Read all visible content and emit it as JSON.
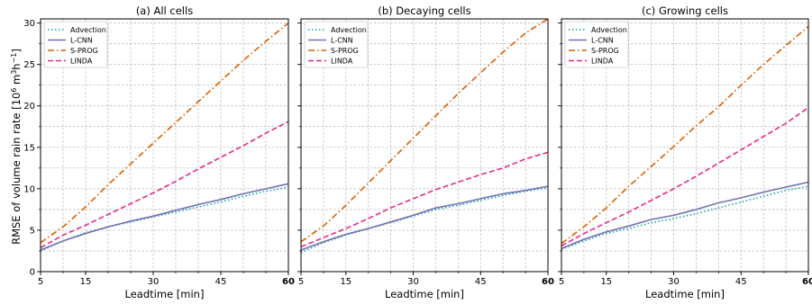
{
  "ylabel_main": "RMSE of volume rain rate [10",
  "ylabel_exp": "6",
  "ylabel_unit1": " m",
  "ylabel_exp2": "3",
  "ylabel_unit2": "h",
  "ylabel_exp3": "−1",
  "ylabel_end": "]",
  "chart_data": [
    {
      "type": "line",
      "title": "(a) All cells",
      "xlabel": "Leadtime [min]",
      "ylabel": "RMSE of volume rain rate [10^6 m^3 h^-1]",
      "xlim": [
        5,
        60
      ],
      "ylim": [
        0,
        30.5
      ],
      "xticks": [
        5,
        15,
        30,
        45,
        60
      ],
      "xtick_labels": [
        "5",
        "15",
        "30",
        "45",
        "60"
      ],
      "yticks": [
        0,
        5,
        10,
        15,
        20,
        25,
        30
      ],
      "ytick_labels": [
        "0",
        "5",
        "10",
        "15",
        "20",
        "25",
        "30"
      ],
      "grid": true,
      "legend": "top-left",
      "x": [
        5,
        10,
        15,
        20,
        25,
        30,
        35,
        40,
        45,
        50,
        55,
        60
      ],
      "series": [
        {
          "name": "Advection",
          "color": "#17a2a8",
          "style": "dotted",
          "values": [
            2.5,
            3.7,
            4.7,
            5.4,
            6.0,
            6.6,
            7.2,
            7.8,
            8.4,
            9.1,
            9.7,
            10.2
          ]
        },
        {
          "name": "L-CNN",
          "color": "#7570b3",
          "style": "solid",
          "values": [
            2.6,
            3.7,
            4.6,
            5.4,
            6.1,
            6.7,
            7.4,
            8.1,
            8.7,
            9.4,
            10.0,
            10.6
          ]
        },
        {
          "name": "S-PROG",
          "color": "#d95f02",
          "style": "dashdot",
          "values": [
            3.5,
            5.4,
            7.8,
            10.5,
            13.0,
            15.5,
            18.0,
            20.5,
            23.0,
            25.5,
            27.8,
            30.0
          ]
        },
        {
          "name": "LINDA",
          "color": "#e7298a",
          "style": "dashed",
          "values": [
            2.9,
            4.4,
            5.6,
            6.9,
            8.2,
            9.5,
            10.9,
            12.4,
            13.8,
            15.2,
            16.7,
            18.1
          ]
        }
      ]
    },
    {
      "type": "line",
      "title": "(b) Decaying cells",
      "xlabel": "Leadtime [min]",
      "xlim": [
        5,
        60
      ],
      "ylim": [
        0,
        30.5
      ],
      "xticks": [
        5,
        15,
        30,
        45,
        60
      ],
      "xtick_labels": [
        "5",
        "15",
        "30",
        "45",
        "60"
      ],
      "grid": true,
      "legend": "top-left",
      "x": [
        5,
        10,
        15,
        20,
        25,
        30,
        35,
        40,
        45,
        50,
        55,
        60
      ],
      "series": [
        {
          "name": "Advection",
          "color": "#17a2a8",
          "style": "dotted",
          "values": [
            2.3,
            3.5,
            4.4,
            5.2,
            5.9,
            6.7,
            7.5,
            8.0,
            8.6,
            9.2,
            9.7,
            10.1
          ]
        },
        {
          "name": "L-CNN",
          "color": "#7570b3",
          "style": "solid",
          "values": [
            2.6,
            3.6,
            4.5,
            5.2,
            6.0,
            6.8,
            7.7,
            8.2,
            8.8,
            9.4,
            9.8,
            10.3
          ]
        },
        {
          "name": "S-PROG",
          "color": "#d95f02",
          "style": "dashdot",
          "values": [
            3.6,
            5.5,
            8.0,
            10.7,
            13.4,
            16.1,
            18.8,
            21.5,
            24.0,
            26.5,
            28.8,
            30.5
          ]
        },
        {
          "name": "LINDA",
          "color": "#e7298a",
          "style": "dashed",
          "values": [
            3.0,
            4.1,
            5.2,
            6.4,
            7.7,
            8.8,
            9.9,
            10.8,
            11.7,
            12.5,
            13.6,
            14.4
          ]
        }
      ]
    },
    {
      "type": "line",
      "title": "(c) Growing cells",
      "xlabel": "Leadtime [min]",
      "xlim": [
        5,
        60
      ],
      "ylim": [
        0,
        30.5
      ],
      "xticks": [
        5,
        15,
        30,
        45,
        60
      ],
      "xtick_labels": [
        "5",
        "15",
        "30",
        "45",
        "60"
      ],
      "grid": true,
      "legend": "top-left",
      "x": [
        5,
        10,
        15,
        20,
        25,
        30,
        35,
        40,
        45,
        50,
        55,
        60
      ],
      "series": [
        {
          "name": "Advection",
          "color": "#17a2a8",
          "style": "dotted",
          "values": [
            2.7,
            3.7,
            4.6,
            5.2,
            5.9,
            6.4,
            7.0,
            7.7,
            8.4,
            9.1,
            9.8,
            10.3
          ]
        },
        {
          "name": "L-CNN",
          "color": "#7570b3",
          "style": "solid",
          "values": [
            2.8,
            3.9,
            4.8,
            5.5,
            6.3,
            6.8,
            7.5,
            8.3,
            8.9,
            9.6,
            10.2,
            10.8
          ]
        },
        {
          "name": "S-PROG",
          "color": "#d95f02",
          "style": "dashdot",
          "values": [
            3.4,
            5.4,
            7.7,
            10.3,
            12.7,
            15.1,
            17.6,
            19.9,
            22.5,
            25.0,
            27.3,
            29.6
          ]
        },
        {
          "name": "LINDA",
          "color": "#e7298a",
          "style": "dashed",
          "values": [
            3.1,
            4.6,
            5.9,
            7.2,
            8.6,
            10.0,
            11.5,
            13.1,
            14.7,
            16.3,
            17.9,
            19.8
          ]
        }
      ]
    }
  ]
}
